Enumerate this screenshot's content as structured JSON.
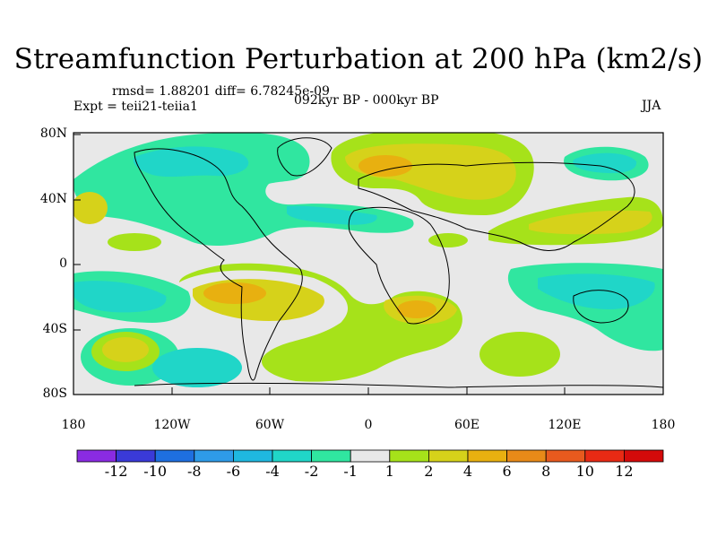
{
  "title": "Streamfunction Perturbation at 200 hPa (km2/s)",
  "stats_line": "rmsd= 1.88201 diff= 6.78245e-09",
  "experiment_line": "Expt = teii21-teiia1",
  "period_line": "092kyr BP - 000kyr BP",
  "season": "JJA",
  "map": {
    "y_ticks": [
      "80N",
      "40N",
      "0",
      "40S",
      "80S"
    ],
    "x_ticks": [
      "180",
      "120W",
      "60W",
      "0",
      "60E",
      "120E",
      "180"
    ]
  },
  "colorbar": {
    "labels": [
      "-12",
      "-10",
      "-8",
      "-6",
      "-4",
      "-2",
      "-1",
      "1",
      "2",
      "4",
      "6",
      "8",
      "10",
      "12"
    ],
    "colors": [
      "#8a2be2",
      "#3a3ad8",
      "#1e6fe0",
      "#2e9be8",
      "#1fb8e0",
      "#20d6c8",
      "#30e6a0",
      "#e8e8e8",
      "#a6e21a",
      "#d6d21a",
      "#e8b010",
      "#e88a18",
      "#e85a1e",
      "#e82a14",
      "#d40a0a"
    ]
  },
  "colors": {
    "neutral": "#e8e8e8",
    "pos_low": "#a6e21a",
    "pos_mid": "#d6d21a",
    "pos_high": "#e8b010",
    "neg_low": "#30e6a0",
    "neg_mid": "#20d6c8",
    "neg_high": "#1fb8e0"
  }
}
